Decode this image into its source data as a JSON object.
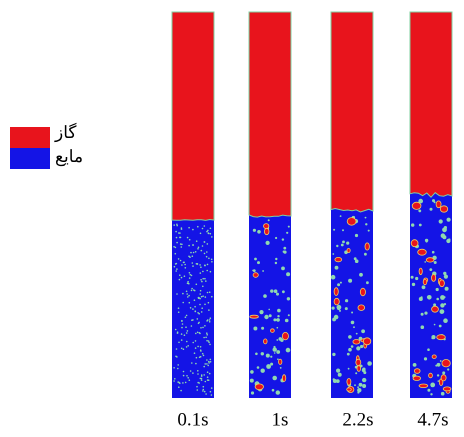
{
  "legend": [
    {
      "label": "گاز"
    },
    {
      "label": "مایع"
    }
  ],
  "columns": [
    {
      "time": "0.1s"
    },
    {
      "time": "1s"
    },
    {
      "time": "2.2s"
    },
    {
      "time": "4.7s"
    }
  ]
}
